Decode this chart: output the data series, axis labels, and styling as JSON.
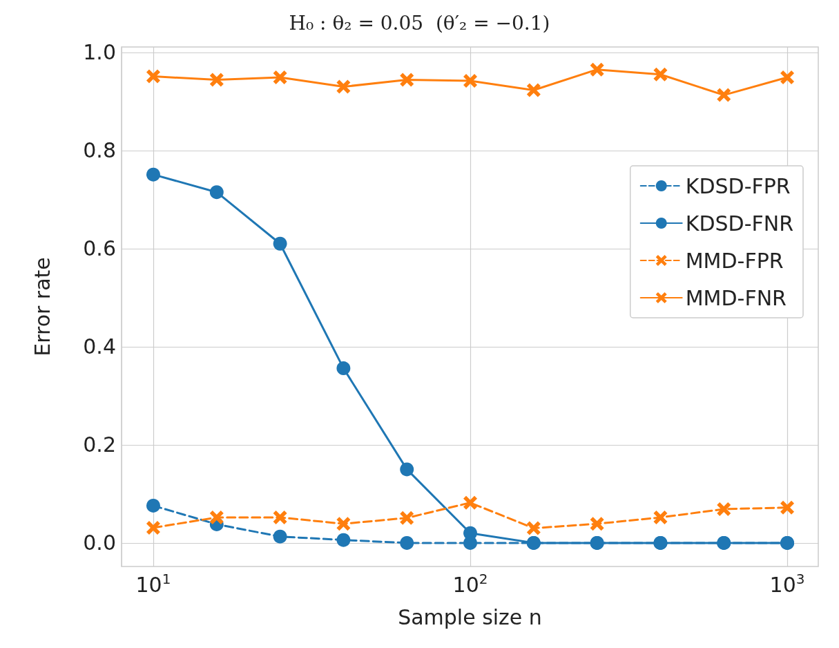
{
  "chart_data": {
    "type": "line",
    "title": "H₀ : θ₂ = 0.05  (θ′₂ = −0.1)",
    "xlabel": "Sample size n",
    "ylabel": "Error rate",
    "x": [
      10,
      15.85,
      25.12,
      39.81,
      63.1,
      100,
      158.5,
      251.2,
      398.1,
      631,
      1000
    ],
    "series": [
      {
        "name": "KDSD-FPR",
        "color": "#1f77b4",
        "marker": "circle",
        "line_style": "dashed",
        "values": [
          0.076,
          0.038,
          0.013,
          0.006,
          0,
          0,
          0,
          0,
          0,
          0,
          0
        ]
      },
      {
        "name": "KDSD-FNR",
        "color": "#1f77b4",
        "marker": "circle",
        "line_style": "solid",
        "values": [
          0.751,
          0.715,
          0.61,
          0.356,
          0.15,
          0.02,
          0,
          0,
          0,
          0,
          0
        ]
      },
      {
        "name": "MMD-FPR",
        "color": "#ff7f0e",
        "marker": "cross",
        "line_style": "dashed",
        "values": [
          0.031,
          0.052,
          0.052,
          0.039,
          0.051,
          0.082,
          0.03,
          0.039,
          0.052,
          0.069,
          0.072
        ]
      },
      {
        "name": "MMD-FNR",
        "color": "#ff7f0e",
        "marker": "cross",
        "line_style": "solid",
        "values": [
          0.951,
          0.944,
          0.949,
          0.93,
          0.944,
          0.942,
          0.923,
          0.965,
          0.955,
          0.913,
          0.949
        ]
      }
    ],
    "log": "x",
    "xlim": [
      7.94,
      1253
    ],
    "xticks": [
      {
        "value": 10,
        "label": "10$^{1}$"
      },
      {
        "value": 100,
        "label": "10$^{2}$"
      },
      {
        "value": 1000,
        "label": "10$^{3}$"
      }
    ],
    "ylim": [
      -0.048,
      1.011
    ],
    "yticks": [
      {
        "value": 0,
        "label": "0.0"
      },
      0.2,
      0.4,
      0.6,
      0.8,
      {
        "value": 1,
        "label": "1.0"
      }
    ],
    "grid": true,
    "legend": "right"
  }
}
